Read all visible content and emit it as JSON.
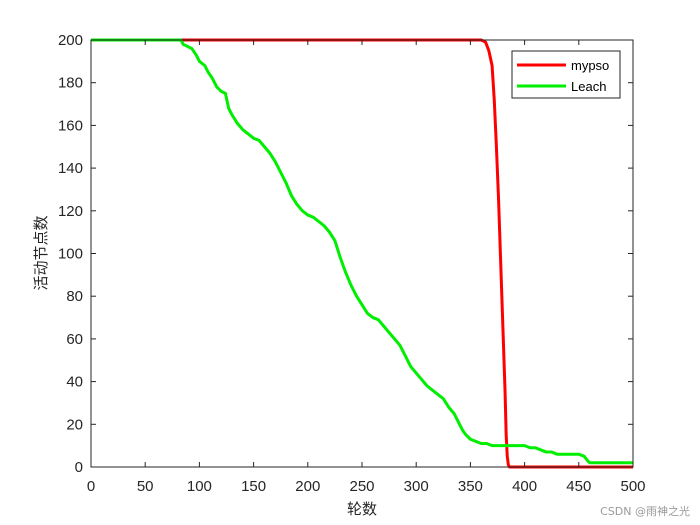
{
  "chart_data": {
    "type": "line",
    "title": "",
    "xlabel": "轮数",
    "ylabel": "活动节点数",
    "xlim": [
      0,
      500
    ],
    "ylim": [
      0,
      200
    ],
    "xticks": [
      0,
      50,
      100,
      150,
      200,
      250,
      300,
      350,
      400,
      450,
      500
    ],
    "yticks": [
      0,
      20,
      40,
      60,
      80,
      100,
      120,
      140,
      160,
      180,
      200
    ],
    "grid": false,
    "legend_position": "top-right",
    "series": [
      {
        "name": "mypso",
        "color": "#ff0000",
        "points": [
          [
            0,
            200
          ],
          [
            360,
            200
          ],
          [
            364,
            199
          ],
          [
            367,
            195
          ],
          [
            370,
            188
          ],
          [
            372,
            172
          ],
          [
            374,
            150
          ],
          [
            376,
            125
          ],
          [
            378,
            95
          ],
          [
            380,
            65
          ],
          [
            382,
            35
          ],
          [
            383,
            15
          ],
          [
            384,
            5
          ],
          [
            385,
            1
          ],
          [
            386,
            0
          ],
          [
            500,
            0
          ]
        ]
      },
      {
        "name": "Leach",
        "color": "#00ee00",
        "points": [
          [
            0,
            200
          ],
          [
            83,
            200
          ],
          [
            85,
            198
          ],
          [
            93,
            196
          ],
          [
            97,
            193
          ],
          [
            100,
            190
          ],
          [
            105,
            188
          ],
          [
            108,
            185
          ],
          [
            112,
            182
          ],
          [
            116,
            178
          ],
          [
            120,
            176
          ],
          [
            124,
            175
          ],
          [
            127,
            168
          ],
          [
            130,
            165
          ],
          [
            135,
            161
          ],
          [
            140,
            158
          ],
          [
            145,
            156
          ],
          [
            150,
            154
          ],
          [
            155,
            153
          ],
          [
            160,
            150
          ],
          [
            165,
            147
          ],
          [
            170,
            143
          ],
          [
            175,
            138
          ],
          [
            180,
            133
          ],
          [
            185,
            127
          ],
          [
            190,
            123
          ],
          [
            195,
            120
          ],
          [
            200,
            118
          ],
          [
            205,
            117
          ],
          [
            210,
            115
          ],
          [
            215,
            113
          ],
          [
            220,
            110
          ],
          [
            225,
            106
          ],
          [
            230,
            98
          ],
          [
            235,
            91
          ],
          [
            240,
            85
          ],
          [
            245,
            80
          ],
          [
            250,
            76
          ],
          [
            255,
            72
          ],
          [
            260,
            70
          ],
          [
            265,
            69
          ],
          [
            270,
            66
          ],
          [
            275,
            63
          ],
          [
            280,
            60
          ],
          [
            285,
            57
          ],
          [
            290,
            52
          ],
          [
            295,
            47
          ],
          [
            300,
            44
          ],
          [
            305,
            41
          ],
          [
            310,
            38
          ],
          [
            315,
            36
          ],
          [
            320,
            34
          ],
          [
            325,
            32
          ],
          [
            330,
            28
          ],
          [
            335,
            25
          ],
          [
            340,
            20
          ],
          [
            343,
            17
          ],
          [
            346,
            15
          ],
          [
            350,
            13
          ],
          [
            355,
            12
          ],
          [
            360,
            11
          ],
          [
            365,
            11
          ],
          [
            370,
            10
          ],
          [
            375,
            10
          ],
          [
            380,
            10
          ],
          [
            390,
            10
          ],
          [
            395,
            10
          ],
          [
            400,
            10
          ],
          [
            405,
            9
          ],
          [
            410,
            9
          ],
          [
            415,
            8
          ],
          [
            420,
            7
          ],
          [
            425,
            7
          ],
          [
            430,
            6
          ],
          [
            440,
            6
          ],
          [
            450,
            6
          ],
          [
            455,
            5
          ],
          [
            458,
            3
          ],
          [
            460,
            2
          ],
          [
            465,
            2
          ],
          [
            480,
            2
          ],
          [
            500,
            2
          ]
        ]
      }
    ]
  },
  "watermark": "CSDN @雨神之光"
}
